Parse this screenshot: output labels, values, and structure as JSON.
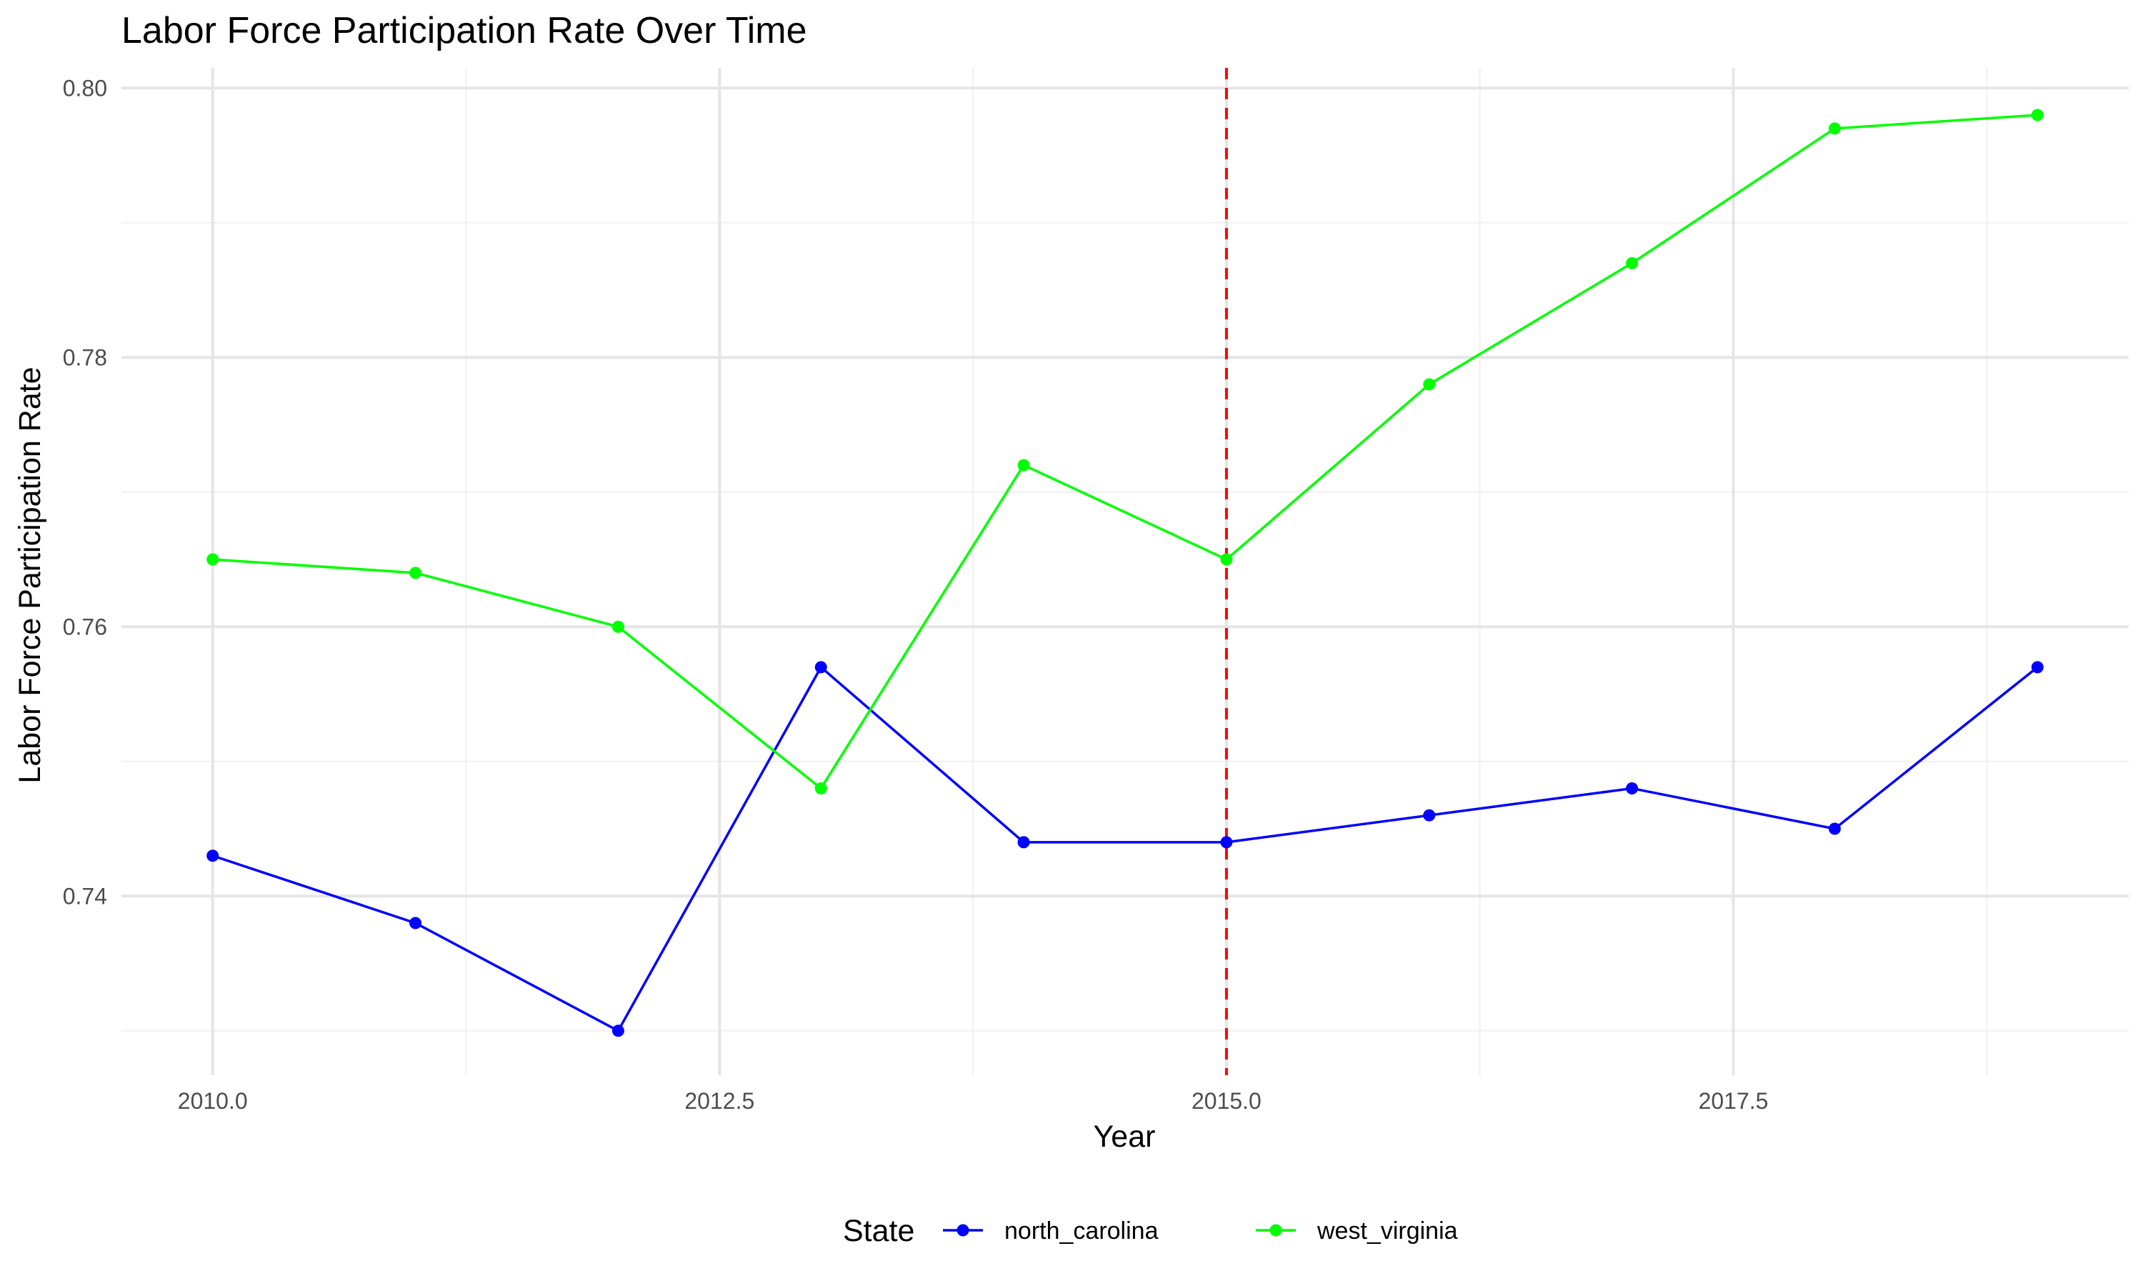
{
  "chart_data": {
    "type": "line",
    "title": "Labor Force Participation Rate Over Time",
    "xlabel": "Year",
    "ylabel": "Labor Force Participation Rate",
    "x": [
      2010,
      2011,
      2012,
      2013,
      2014,
      2015,
      2016,
      2017,
      2018,
      2019
    ],
    "xlim": [
      2009.55,
      2019.45
    ],
    "ylim": [
      0.7267,
      0.8015
    ],
    "xticks": [
      2010,
      2012.5,
      2015,
      2017.5
    ],
    "xtick_labels": [
      "2010.0",
      "2012.5",
      "2015.0",
      "2017.5"
    ],
    "yticks": [
      0.74,
      0.76,
      0.78,
      0.8
    ],
    "ytick_labels": [
      "0.74",
      "0.76",
      "0.78",
      "0.80"
    ],
    "x_minor": [
      2011.25,
      2013.75,
      2016.25,
      2018.75
    ],
    "y_minor": [
      0.73,
      0.75,
      0.77,
      0.79
    ],
    "grid": true,
    "vline": {
      "x": 2015,
      "color": "#ff0000",
      "style": "dashed"
    },
    "legend": {
      "title": "State",
      "position": "bottom"
    },
    "series": [
      {
        "name": "north_carolina",
        "color": "#0000ff",
        "values": [
          0.743,
          0.738,
          0.73,
          0.757,
          0.744,
          0.744,
          0.746,
          0.748,
          0.745,
          0.757
        ]
      },
      {
        "name": "west_virginia",
        "color": "#00ff00",
        "values": [
          0.765,
          0.764,
          0.76,
          0.748,
          0.772,
          0.765,
          0.778,
          0.787,
          0.797,
          0.798
        ]
      }
    ]
  }
}
